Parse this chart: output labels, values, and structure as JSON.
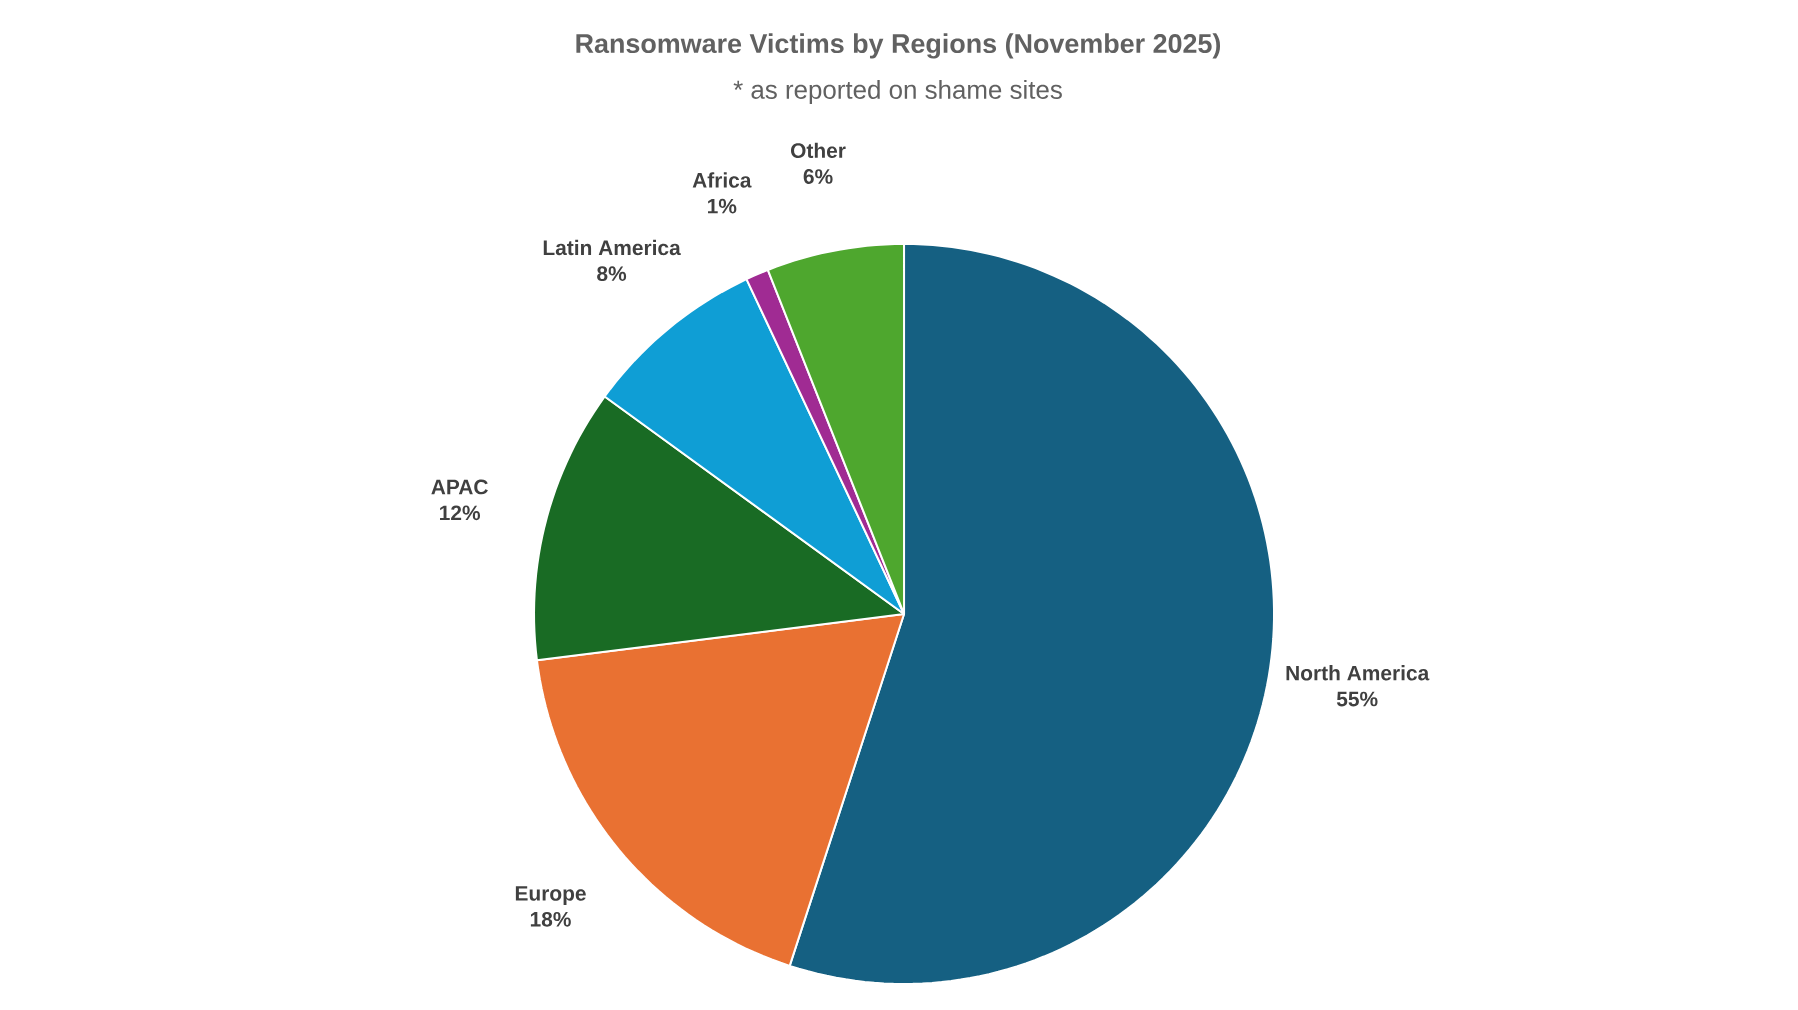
{
  "chart_data": {
    "type": "pie",
    "title": "Ransomware Victims by Regions (November 2025)",
    "subtitle": "* as reported on shame sites",
    "categories": [
      "North America",
      "Europe",
      "APAC",
      "Latin America",
      "Africa",
      "Other"
    ],
    "values": [
      55,
      18,
      12,
      8,
      1,
      6
    ],
    "value_labels": [
      "55%",
      "18%",
      "12%",
      "8%",
      "1%",
      "6%"
    ],
    "colors": [
      "#156082",
      "#e97132",
      "#196b24",
      "#0f9ed5",
      "#a02b93",
      "#4ea72e"
    ]
  }
}
